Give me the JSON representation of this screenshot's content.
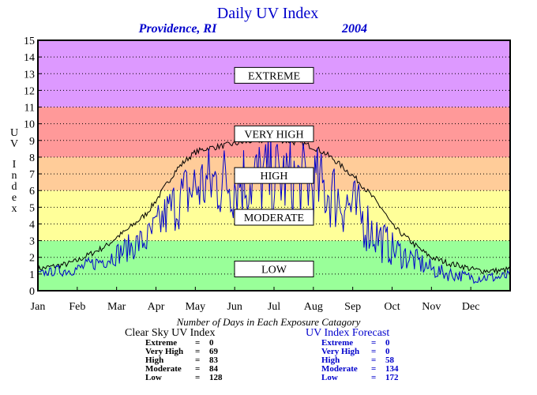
{
  "chart_data": {
    "type": "line",
    "title": "Daily UV Index",
    "location": "Providence, RI",
    "year": "2004",
    "ylabel": "UV Index",
    "ylim": [
      0,
      15
    ],
    "yticks": [
      "0",
      "1",
      "2",
      "3",
      "4",
      "5",
      "6",
      "7",
      "8",
      "9",
      "10",
      "11",
      "12",
      "13",
      "14",
      "15"
    ],
    "months": [
      "Jan",
      "Feb",
      "Mar",
      "Apr",
      "May",
      "Jun",
      "Jul",
      "Aug",
      "Sep",
      "Oct",
      "Nov",
      "Dec"
    ],
    "grid": true,
    "bands": [
      {
        "label": "LOW",
        "from": 0,
        "to": 3,
        "color": "#99ff99",
        "label_y": 1.3
      },
      {
        "label": "MODERATE",
        "from": 3,
        "to": 6,
        "color": "#ffff99",
        "label_y": 4.4
      },
      {
        "label": "HIGH",
        "from": 6,
        "to": 8,
        "color": "#ffcc99",
        "label_y": 6.9
      },
      {
        "label": "VERY HIGH",
        "from": 8,
        "to": 11,
        "color": "#ff9999",
        "label_y": 9.4
      },
      {
        "label": "EXTREME",
        "from": 11,
        "to": 15,
        "color": "#dd99ff",
        "label_y": 12.9
      }
    ],
    "series": [
      {
        "name": "Clear Sky UV Index",
        "color": "#000000",
        "x_month": [
          0,
          0.25,
          0.5,
          0.75,
          1,
          1.25,
          1.5,
          1.75,
          2,
          2.25,
          2.5,
          2.75,
          3,
          3.25,
          3.5,
          3.75,
          4,
          4.25,
          4.5,
          4.75,
          5,
          5.25,
          5.5,
          5.75,
          6,
          6.25,
          6.5,
          6.75,
          7,
          7.25,
          7.5,
          7.75,
          8,
          8.25,
          8.5,
          8.75,
          9,
          9.25,
          9.5,
          9.75,
          10,
          10.25,
          10.5,
          10.75,
          11,
          11.25,
          11.5,
          11.75,
          12
        ],
        "values": [
          1.3,
          1.4,
          1.5,
          1.6,
          1.8,
          2.1,
          2.4,
          2.7,
          3.2,
          3.6,
          4.1,
          4.6,
          5.4,
          6.3,
          7.2,
          7.8,
          8.3,
          8.5,
          8.6,
          8.7,
          8.8,
          8.9,
          9.0,
          9.0,
          9.1,
          9.0,
          8.9,
          8.8,
          8.6,
          8.3,
          7.9,
          7.4,
          6.9,
          6.3,
          5.6,
          4.9,
          3.9,
          3.4,
          2.9,
          2.4,
          2.0,
          1.8,
          1.6,
          1.5,
          1.3,
          1.2,
          1.2,
          1.2,
          1.3
        ]
      },
      {
        "name": "UV Index Forecast",
        "color": "#0000cc",
        "x_month": [
          0,
          0.25,
          0.5,
          0.75,
          1,
          1.25,
          1.5,
          1.75,
          2,
          2.25,
          2.5,
          2.75,
          3,
          3.25,
          3.5,
          3.75,
          4,
          4.25,
          4.5,
          4.75,
          5,
          5.25,
          5.5,
          5.75,
          6,
          6.25,
          6.5,
          6.75,
          7,
          7.25,
          7.5,
          7.75,
          8,
          8.25,
          8.5,
          8.75,
          9,
          9.25,
          9.5,
          9.75,
          10,
          10.25,
          10.5,
          10.75,
          11,
          11.25,
          11.5,
          11.75,
          12
        ],
        "values": [
          1.0,
          1.1,
          1.2,
          1.2,
          1.3,
          1.5,
          1.7,
          1.9,
          2.2,
          2.5,
          2.8,
          3.0,
          3.7,
          4.5,
          5.2,
          5.8,
          6.2,
          6.4,
          6.5,
          6.6,
          6.6,
          6.7,
          6.7,
          6.8,
          6.8,
          6.7,
          6.6,
          6.5,
          6.4,
          6.1,
          5.8,
          5.4,
          4.9,
          4.3,
          3.6,
          3.0,
          2.5,
          2.2,
          1.9,
          1.6,
          1.3,
          1.1,
          1.0,
          0.9,
          0.8,
          0.8,
          0.8,
          0.8,
          0.9
        ],
        "amplitude": [
          0.2,
          0.2,
          0.3,
          0.3,
          0.3,
          0.4,
          0.4,
          0.5,
          0.6,
          0.7,
          0.8,
          0.9,
          1.1,
          1.3,
          1.5,
          1.7,
          1.9,
          2.0,
          2.1,
          2.1,
          2.2,
          2.2,
          2.2,
          2.2,
          2.2,
          2.2,
          2.2,
          2.1,
          2.1,
          2.0,
          2.0,
          1.9,
          1.8,
          1.6,
          1.4,
          1.2,
          0.9,
          0.8,
          0.7,
          0.6,
          0.5,
          0.4,
          0.4,
          0.3,
          0.3,
          0.3,
          0.3,
          0.3,
          0.3
        ]
      }
    ]
  },
  "days_caption": "Number of Days in Each Exposure Catagory",
  "clear_sky": {
    "heading": "Clear Sky UV Index",
    "rows": [
      {
        "label": "Extreme",
        "eq": "=",
        "value": "0"
      },
      {
        "label": "Very High",
        "eq": "=",
        "value": "69"
      },
      {
        "label": "High",
        "eq": "=",
        "value": "83"
      },
      {
        "label": "Moderate",
        "eq": "=",
        "value": "84"
      },
      {
        "label": "Low",
        "eq": "=",
        "value": "128"
      }
    ]
  },
  "forecast": {
    "heading": "UV Index Forecast",
    "rows": [
      {
        "label": "Extreme",
        "eq": "=",
        "value": "0"
      },
      {
        "label": "Very High",
        "eq": "=",
        "value": "0"
      },
      {
        "label": "High",
        "eq": "=",
        "value": "58"
      },
      {
        "label": "Moderate",
        "eq": "=",
        "value": "134"
      },
      {
        "label": "Low",
        "eq": "=",
        "value": "172"
      }
    ]
  },
  "colors": {
    "title": "#0000cc",
    "clear_sky_stats": "#000000",
    "forecast_stats": "#0000cc"
  }
}
